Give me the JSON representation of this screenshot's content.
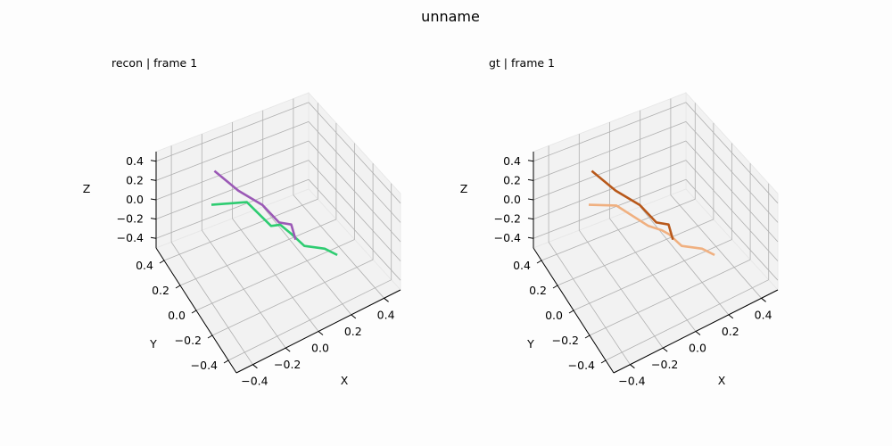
{
  "figure": {
    "suptitle": "unname"
  },
  "chart_data": [
    {
      "type": "line3d",
      "title": "recon | frame 1",
      "xlabel": "X",
      "ylabel": "Y",
      "zlabel": "Z",
      "xlim": [
        -0.5,
        0.5
      ],
      "ylim": [
        -0.5,
        0.5
      ],
      "zlim": [
        -0.5,
        0.5
      ],
      "xticks": [
        "−0.4",
        "−0.2",
        "0.0",
        "0.2",
        "0.4"
      ],
      "yticks": [
        "−0.4",
        "−0.2",
        "0.0",
        "0.2",
        "0.4"
      ],
      "zticks": [
        "−0.4",
        "−0.2",
        "0.0",
        "0.2",
        "0.4"
      ],
      "grid": true,
      "series": [
        {
          "color": "#2ecc71",
          "points": [
            [
              -0.3,
              0.2,
              0.2
            ],
            [
              -0.1,
              0.15,
              0.15
            ],
            [
              0.0,
              0.05,
              -0.05
            ],
            [
              0.03,
              0.0,
              0.0
            ],
            [
              0.05,
              -0.1,
              0.0
            ],
            [
              0.1,
              -0.15,
              -0.1
            ],
            [
              0.15,
              -0.2,
              -0.1
            ],
            [
              0.2,
              -0.2,
              -0.15
            ],
            [
              0.25,
              -0.25,
              -0.2
            ]
          ]
        },
        {
          "color": "#9b59b6",
          "points": [
            [
              -0.2,
              0.35,
              0.3
            ],
            [
              -0.1,
              0.25,
              0.15
            ],
            [
              0.0,
              0.15,
              0.05
            ],
            [
              0.05,
              0.05,
              -0.05
            ],
            [
              0.1,
              0.0,
              -0.05
            ],
            [
              0.1,
              -0.05,
              -0.15
            ]
          ]
        }
      ]
    },
    {
      "type": "line3d",
      "title": "gt | frame 1",
      "xlabel": "X",
      "ylabel": "Y",
      "zlabel": "Z",
      "xlim": [
        -0.5,
        0.5
      ],
      "ylim": [
        -0.5,
        0.5
      ],
      "zlim": [
        -0.5,
        0.5
      ],
      "xticks": [
        "−0.4",
        "−0.2",
        "0.0",
        "0.2",
        "0.4"
      ],
      "yticks": [
        "−0.4",
        "−0.2",
        "0.0",
        "0.2",
        "0.4"
      ],
      "zticks": [
        "−0.4",
        "−0.2",
        "0.0",
        "0.2",
        "0.4"
      ],
      "grid": true,
      "series": [
        {
          "color": "#f0b080",
          "points": [
            [
              -0.3,
              0.2,
              0.2
            ],
            [
              -0.15,
              0.15,
              0.15
            ],
            [
              0.0,
              0.05,
              -0.05
            ],
            [
              0.03,
              -0.05,
              0.0
            ],
            [
              0.05,
              -0.1,
              0.0
            ],
            [
              0.1,
              -0.15,
              -0.1
            ],
            [
              0.15,
              -0.2,
              -0.1
            ],
            [
              0.2,
              -0.2,
              -0.15
            ],
            [
              0.25,
              -0.25,
              -0.2
            ]
          ]
        },
        {
          "color": "#b8581a",
          "points": [
            [
              -0.2,
              0.35,
              0.3
            ],
            [
              -0.1,
              0.25,
              0.15
            ],
            [
              0.0,
              0.15,
              0.05
            ],
            [
              0.05,
              0.05,
              -0.05
            ],
            [
              0.1,
              0.0,
              -0.05
            ],
            [
              0.1,
              -0.05,
              -0.15
            ]
          ]
        }
      ]
    }
  ]
}
